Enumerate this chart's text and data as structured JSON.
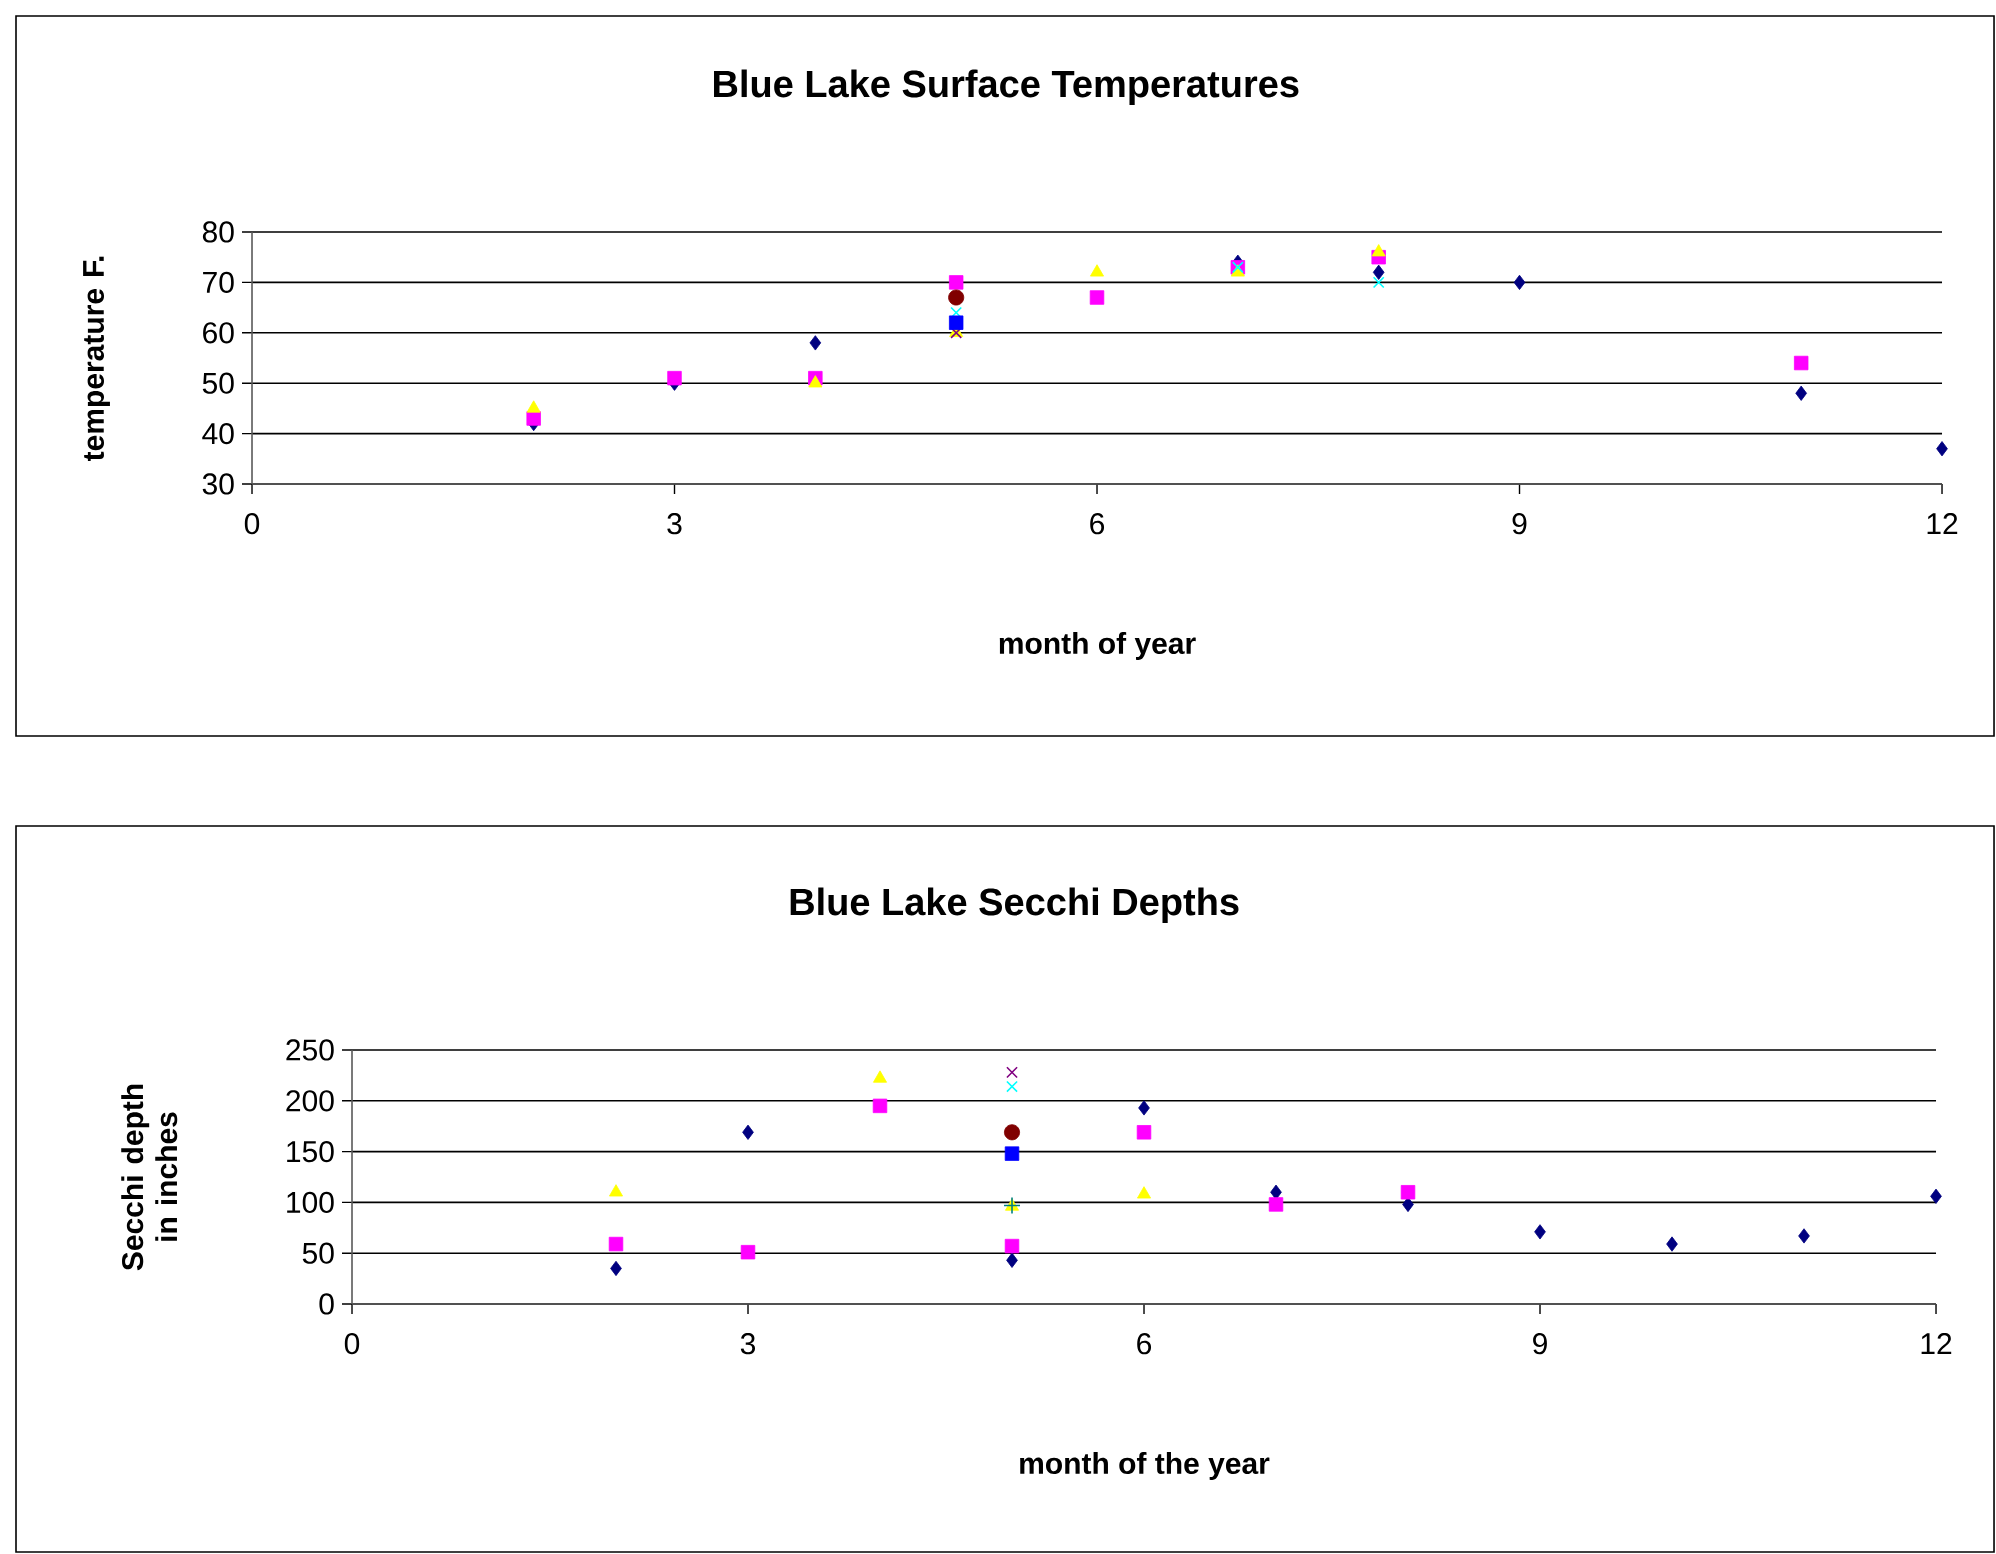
{
  "chart_data": [
    {
      "type": "scatter",
      "title": "Blue Lake Surface Temperatures",
      "xlabel": "month of year",
      "ylabel": "temperature  F.",
      "xlim": [
        0,
        12
      ],
      "xticks": [
        0,
        3,
        6,
        9,
        12
      ],
      "ylim": [
        30,
        80
      ],
      "yticks": [
        30,
        40,
        50,
        60,
        70,
        80
      ],
      "grid": "y",
      "series": [
        {
          "color": "#000080",
          "marker": "diamond",
          "x": [
            2,
            3,
            4,
            7,
            8,
            9,
            11,
            12
          ],
          "values": [
            42,
            50,
            58,
            74,
            72,
            70,
            48,
            37
          ]
        },
        {
          "color": "#ff00ff",
          "marker": "square",
          "x": [
            2,
            3,
            4,
            5,
            6,
            7,
            8,
            11
          ],
          "values": [
            43,
            51,
            51,
            70,
            67,
            73,
            75,
            54
          ]
        },
        {
          "color": "#ffff00",
          "marker": "triangle",
          "x": [
            2,
            4,
            5,
            6,
            7,
            8
          ],
          "values": [
            45,
            50,
            60,
            72,
            72,
            76
          ]
        },
        {
          "color": "#00ffff",
          "marker": "cross",
          "x": [
            5,
            7,
            8
          ],
          "values": [
            64,
            73,
            70
          ]
        },
        {
          "color": "#800080",
          "marker": "cross",
          "x": [
            5
          ],
          "values": [
            60
          ]
        },
        {
          "color": "#800000",
          "marker": "circle",
          "x": [
            5
          ],
          "values": [
            67
          ]
        },
        {
          "color": "#0000ff",
          "marker": "square",
          "x": [
            5
          ],
          "values": [
            62
          ]
        }
      ]
    },
    {
      "type": "scatter",
      "title": "Blue Lake Secchi Depths",
      "xlabel": "month of the year",
      "ylabel": "Secchi depth in inches",
      "xlim": [
        0,
        12
      ],
      "xticks": [
        0,
        3,
        6,
        9,
        12
      ],
      "ylim": [
        0,
        250
      ],
      "yticks": [
        0,
        50,
        100,
        150,
        200,
        250
      ],
      "grid": "y",
      "series": [
        {
          "color": "#000080",
          "marker": "diamond",
          "x": [
            2,
            3,
            5,
            6,
            7,
            8,
            9,
            10,
            11,
            12
          ],
          "values": [
            35,
            169,
            43,
            193,
            110,
            98,
            71,
            59,
            67,
            106
          ]
        },
        {
          "color": "#ff00ff",
          "marker": "square",
          "x": [
            2,
            3,
            4,
            5,
            6,
            7,
            8
          ],
          "values": [
            59,
            51,
            195,
            57,
            169,
            98,
            110
          ]
        },
        {
          "color": "#ffff00",
          "marker": "triangle",
          "x": [
            2,
            4,
            5,
            6
          ],
          "values": [
            110,
            222,
            96,
            108
          ]
        },
        {
          "color": "#00ffff",
          "marker": "cross",
          "x": [
            5
          ],
          "values": [
            214
          ]
        },
        {
          "color": "#800080",
          "marker": "cross",
          "x": [
            5
          ],
          "values": [
            228
          ]
        },
        {
          "color": "#800000",
          "marker": "circle",
          "x": [
            5
          ],
          "values": [
            169
          ]
        },
        {
          "color": "#0000ff",
          "marker": "square",
          "x": [
            5
          ],
          "values": [
            148
          ]
        },
        {
          "color": "#008080",
          "marker": "plus",
          "x": [
            5
          ],
          "values": [
            97
          ]
        }
      ]
    }
  ]
}
